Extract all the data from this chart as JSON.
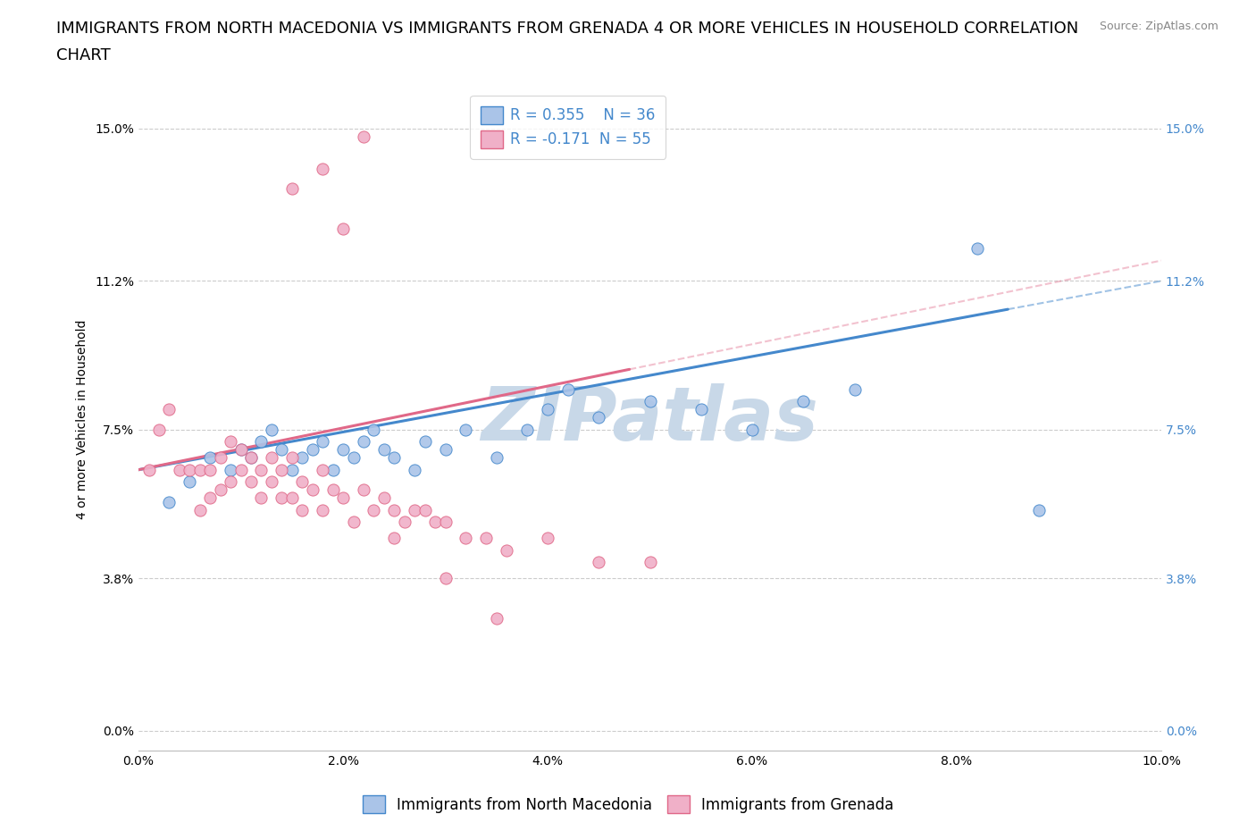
{
  "title_line1": "IMMIGRANTS FROM NORTH MACEDONIA VS IMMIGRANTS FROM GRENADA 4 OR MORE VEHICLES IN HOUSEHOLD CORRELATION",
  "title_line2": "CHART",
  "source_text": "Source: ZipAtlas.com",
  "ylabel": "4 or more Vehicles in Household",
  "xlim": [
    0.0,
    0.1
  ],
  "ylim": [
    -0.005,
    0.16
  ],
  "xticks": [
    0.0,
    0.02,
    0.04,
    0.06,
    0.08,
    0.1
  ],
  "ytick_positions": [
    0.0,
    0.038,
    0.075,
    0.112,
    0.15
  ],
  "blue_R": 0.355,
  "blue_N": 36,
  "pink_R": -0.171,
  "pink_N": 55,
  "blue_color": "#aac4e8",
  "pink_color": "#f0b0c8",
  "blue_line_color": "#4488cc",
  "pink_line_color": "#e06888",
  "grid_color": "#cccccc",
  "watermark_color": "#c8d8e8",
  "blue_scatter_x": [
    0.003,
    0.005,
    0.007,
    0.009,
    0.01,
    0.011,
    0.012,
    0.013,
    0.014,
    0.015,
    0.016,
    0.017,
    0.018,
    0.019,
    0.02,
    0.021,
    0.022,
    0.023,
    0.024,
    0.025,
    0.027,
    0.028,
    0.03,
    0.032,
    0.035,
    0.038,
    0.04,
    0.042,
    0.045,
    0.05,
    0.055,
    0.06,
    0.065,
    0.07,
    0.082,
    0.088
  ],
  "blue_scatter_y": [
    0.057,
    0.062,
    0.068,
    0.065,
    0.07,
    0.068,
    0.072,
    0.075,
    0.07,
    0.065,
    0.068,
    0.07,
    0.072,
    0.065,
    0.07,
    0.068,
    0.072,
    0.075,
    0.07,
    0.068,
    0.065,
    0.072,
    0.07,
    0.075,
    0.068,
    0.075,
    0.08,
    0.085,
    0.078,
    0.082,
    0.08,
    0.075,
    0.082,
    0.085,
    0.12,
    0.055
  ],
  "pink_scatter_x": [
    0.001,
    0.002,
    0.003,
    0.004,
    0.005,
    0.006,
    0.006,
    0.007,
    0.007,
    0.008,
    0.008,
    0.009,
    0.009,
    0.01,
    0.01,
    0.011,
    0.011,
    0.012,
    0.012,
    0.013,
    0.013,
    0.014,
    0.014,
    0.015,
    0.015,
    0.016,
    0.016,
    0.017,
    0.018,
    0.018,
    0.019,
    0.02,
    0.021,
    0.022,
    0.023,
    0.024,
    0.025,
    0.026,
    0.027,
    0.028,
    0.029,
    0.03,
    0.032,
    0.034,
    0.036,
    0.04,
    0.045,
    0.05,
    0.025,
    0.022,
    0.018,
    0.015,
    0.02,
    0.03,
    0.035
  ],
  "pink_scatter_y": [
    0.065,
    0.075,
    0.08,
    0.065,
    0.065,
    0.065,
    0.055,
    0.058,
    0.065,
    0.06,
    0.068,
    0.062,
    0.072,
    0.065,
    0.07,
    0.062,
    0.068,
    0.065,
    0.058,
    0.068,
    0.062,
    0.058,
    0.065,
    0.068,
    0.058,
    0.062,
    0.055,
    0.06,
    0.055,
    0.065,
    0.06,
    0.058,
    0.052,
    0.06,
    0.055,
    0.058,
    0.055,
    0.052,
    0.055,
    0.055,
    0.052,
    0.052,
    0.048,
    0.048,
    0.045,
    0.048,
    0.042,
    0.042,
    0.048,
    0.148,
    0.14,
    0.135,
    0.125,
    0.038,
    0.028
  ],
  "legend_label_blue": "Immigrants from North Macedonia",
  "legend_label_pink": "Immigrants from Grenada",
  "title_fontsize": 13,
  "axis_label_fontsize": 10,
  "tick_fontsize": 10,
  "legend_fontsize": 12
}
